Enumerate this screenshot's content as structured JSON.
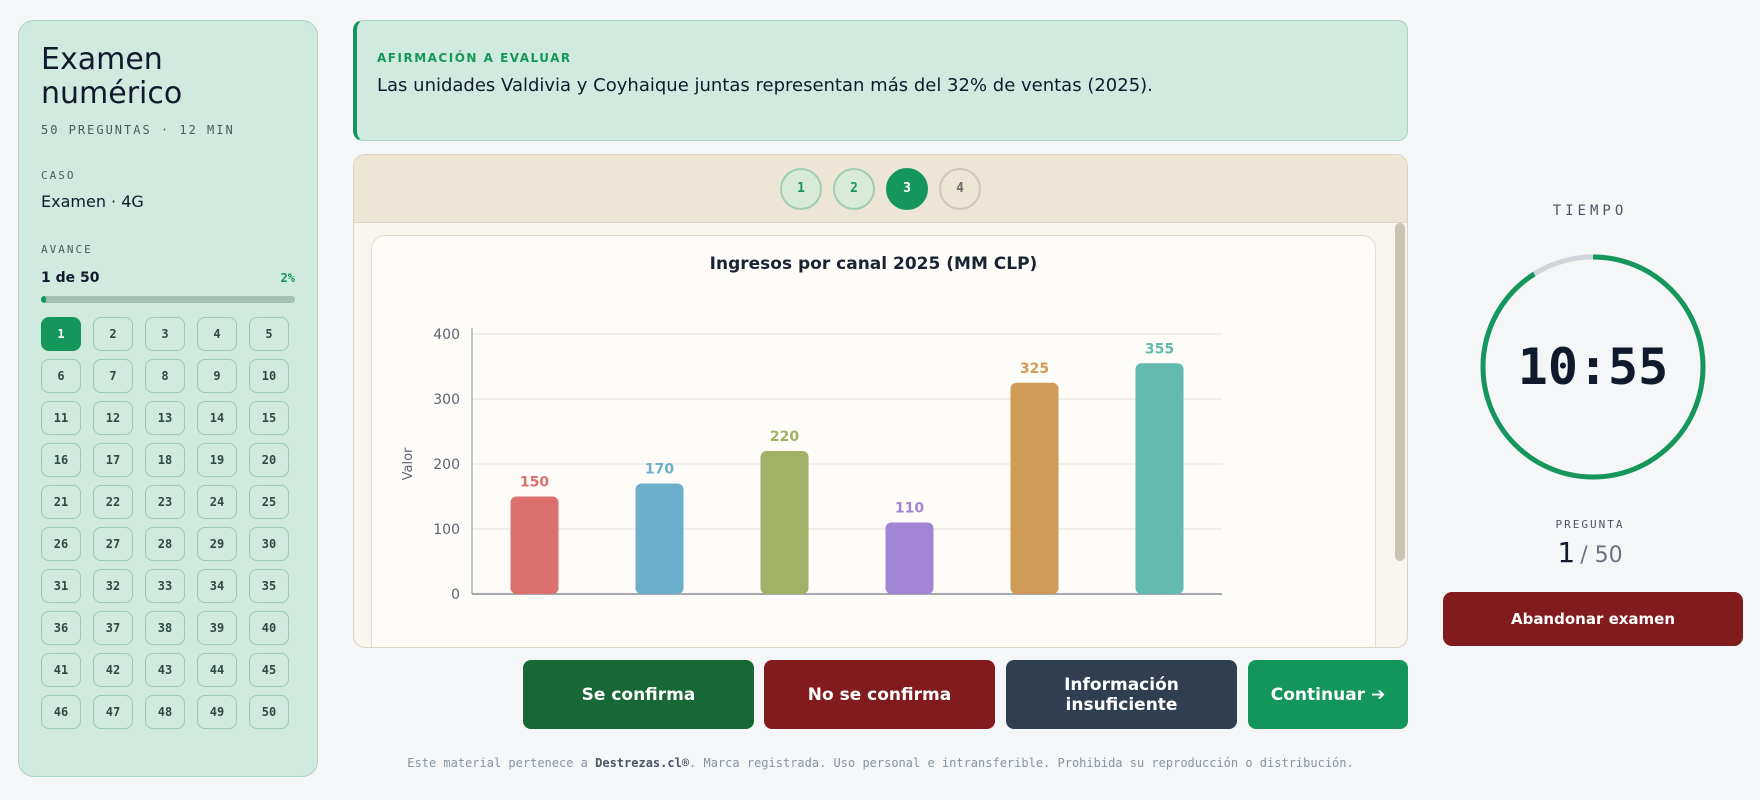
{
  "sidebar": {
    "title": "Examen numérico",
    "subtitle": "50 PREGUNTAS · 12 MIN",
    "case_label": "CASO",
    "case_value": "Examen · 4G",
    "progress_label": "AVANCE",
    "progress_text": "1 de 50",
    "progress_pct": "2%",
    "progress_fraction": 0.02,
    "questions": [
      "1",
      "2",
      "3",
      "4",
      "5",
      "6",
      "7",
      "8",
      "9",
      "10",
      "11",
      "12",
      "13",
      "14",
      "15",
      "16",
      "17",
      "18",
      "19",
      "20",
      "21",
      "22",
      "23",
      "24",
      "25",
      "26",
      "27",
      "28",
      "29",
      "30",
      "31",
      "32",
      "33",
      "34",
      "35",
      "36",
      "37",
      "38",
      "39",
      "40",
      "41",
      "42",
      "43",
      "44",
      "45",
      "46",
      "47",
      "48",
      "49",
      "50"
    ],
    "active_question": "1"
  },
  "statement": {
    "label": "AFIRMACIÓN A EVALUAR",
    "text": "Las unidades Valdivia y Coyhaique juntas representan más del 32% de ventas (2025)."
  },
  "tabs": [
    {
      "label": "1",
      "state": "done"
    },
    {
      "label": "2",
      "state": "done"
    },
    {
      "label": "3",
      "state": "current"
    },
    {
      "label": "4",
      "state": "todo"
    }
  ],
  "chart_data": {
    "type": "bar",
    "title": "Ingresos por canal 2025 (MM CLP)",
    "ylabel": "Valor",
    "ylim": [
      0,
      400
    ],
    "yticks": [
      0,
      100,
      200,
      300,
      400
    ],
    "values": [
      150,
      170,
      220,
      110,
      325,
      355
    ],
    "colors": [
      "#dc706e",
      "#6bafcd",
      "#a1b166",
      "#a184d4",
      "#cf9b56",
      "#63baae"
    ],
    "grid": true
  },
  "actions": {
    "confirm": "Se confirma",
    "no_confirm": "No se confirma",
    "insufficient": "Información insuficiente",
    "next": "Continuar ➔"
  },
  "footer": {
    "prefix": "Este material pertenece a ",
    "brand": "Destrezas.cl®",
    "suffix": ". Marca registrada. Uso personal e intransferible. Prohibida su reproducción o distribución."
  },
  "timer": {
    "label": "TIEMPO",
    "value": "10:55",
    "remaining_fraction": 0.91,
    "color": "#15965a"
  },
  "question_counter": {
    "label": "PREGUNTA",
    "current": "1",
    "total": "/ 50"
  },
  "abandon_label": "Abandonar examen"
}
